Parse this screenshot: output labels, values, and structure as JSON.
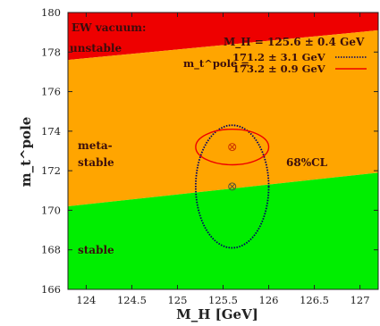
{
  "chart_data": {
    "type": "region",
    "xlabel": "M_H [GeV]",
    "ylabel": "m_t^pole",
    "xlim": [
      123.8,
      127.2
    ],
    "ylim": [
      166,
      180
    ],
    "x_ticks": [
      124,
      124.5,
      125,
      125.5,
      126,
      126.5,
      127
    ],
    "x_tick_labels": [
      "124",
      "124.5",
      "125",
      "125.5",
      "126",
      "126.5",
      "127"
    ],
    "y_ticks": [
      166,
      168,
      170,
      172,
      174,
      176,
      178,
      180
    ],
    "y_tick_labels": [
      "166",
      "168",
      "170",
      "172",
      "174",
      "176",
      "178",
      "180"
    ],
    "regions": [
      {
        "name": "stable",
        "label": "stable",
        "color": "#00ee00"
      },
      {
        "name": "metastable",
        "label_line1": "meta-",
        "label_line2": "stable",
        "color": "#ffa500"
      },
      {
        "name": "unstable",
        "label_line1": "EW vacuum:",
        "label_line2": "unstable",
        "color": "#ee0000"
      }
    ],
    "boundaries": {
      "stable_meta": {
        "x": [
          123.8,
          127.2
        ],
        "y": [
          170.2,
          171.9
        ]
      },
      "meta_unstable": {
        "x": [
          123.8,
          127.2
        ],
        "y": [
          177.6,
          179.1
        ]
      }
    },
    "ellipses": [
      {
        "name": "Δm = 3.1 GeV",
        "center": [
          125.6,
          171.2
        ],
        "rx": 0.4,
        "ry": 3.1,
        "color": "#000066",
        "style": "dotted"
      },
      {
        "name": "Δm = 0.9 GeV",
        "center": [
          125.6,
          173.2
        ],
        "rx": 0.4,
        "ry": 0.9,
        "color": "#ee0000",
        "style": "solid"
      }
    ],
    "legend": {
      "mh_text": "M_H = 125.6 ± 0.4 GeV",
      "mt_prefix": "m_t^pole =",
      "entry1": "171.2 ± 3.1 GeV",
      "entry2": "173.2 ± 0.9 GeV"
    },
    "cl_label": "68%CL"
  }
}
